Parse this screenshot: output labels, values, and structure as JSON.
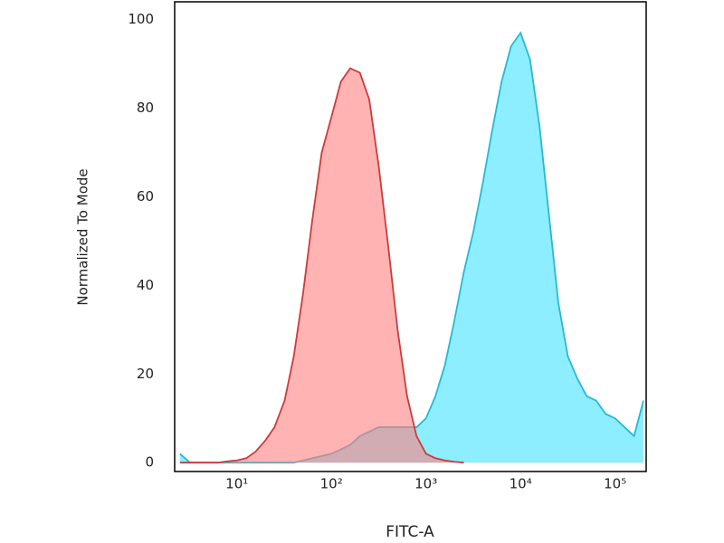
{
  "chart_data": {
    "type": "area",
    "x_label": "FITC-A",
    "y_label": "Normalized To Mode",
    "x_log": true,
    "xlim": [
      2.2,
      213000
    ],
    "xticks": [
      {
        "value": 10,
        "label": "10¹"
      },
      {
        "value": 100,
        "label": "10²"
      },
      {
        "value": 1000,
        "label": "10³"
      },
      {
        "value": 10000,
        "label": "10⁴"
      },
      {
        "value": 100000,
        "label": "10⁵"
      }
    ],
    "ylim": [
      -2,
      104
    ],
    "yticks": [
      0,
      20,
      40,
      60,
      80,
      100
    ],
    "grid": false,
    "x": [
      2.5,
      3.2,
      4.0,
      5.0,
      6.3,
      7.9,
      10,
      12.6,
      15.8,
      20,
      25,
      32,
      40,
      50,
      63,
      79,
      100,
      126,
      158,
      200,
      251,
      316,
      398,
      501,
      631,
      794,
      1000,
      1259,
      1585,
      1995,
      2512,
      3162,
      3981,
      5012,
      6310,
      7943,
      10000,
      12589,
      15849,
      19953,
      25119,
      31623,
      39811,
      50119,
      63096,
      79433,
      100000,
      125893,
      158489,
      199526
    ],
    "series": [
      {
        "color": "#29b8d2",
        "fill": "#8ceeff",
        "values": [
          2,
          0,
          0,
          0,
          0,
          0,
          0,
          0,
          0,
          0,
          0,
          0,
          0,
          0.5,
          1,
          1.5,
          2,
          3,
          4,
          6,
          7,
          8,
          8,
          8,
          8,
          8,
          10,
          15,
          22,
          32,
          43,
          52,
          63,
          75,
          86,
          94,
          97,
          91,
          76,
          56,
          36,
          24,
          19,
          15,
          14,
          11,
          10,
          8,
          6,
          14
        ]
      },
      {
        "color": "#cc3b3b",
        "fill": "#ff8080",
        "values": [
          0,
          0,
          0,
          0,
          0,
          0.3,
          0.5,
          1,
          2.5,
          5,
          8,
          14,
          24,
          38,
          55,
          70,
          78,
          86,
          89,
          88,
          82,
          67,
          49,
          30,
          15,
          6,
          2,
          1,
          0.5,
          0.2,
          0,
          null,
          null,
          null,
          null,
          null,
          null,
          null,
          null,
          null,
          null,
          null,
          null,
          null,
          null,
          null,
          null,
          null,
          null,
          null
        ]
      }
    ]
  }
}
